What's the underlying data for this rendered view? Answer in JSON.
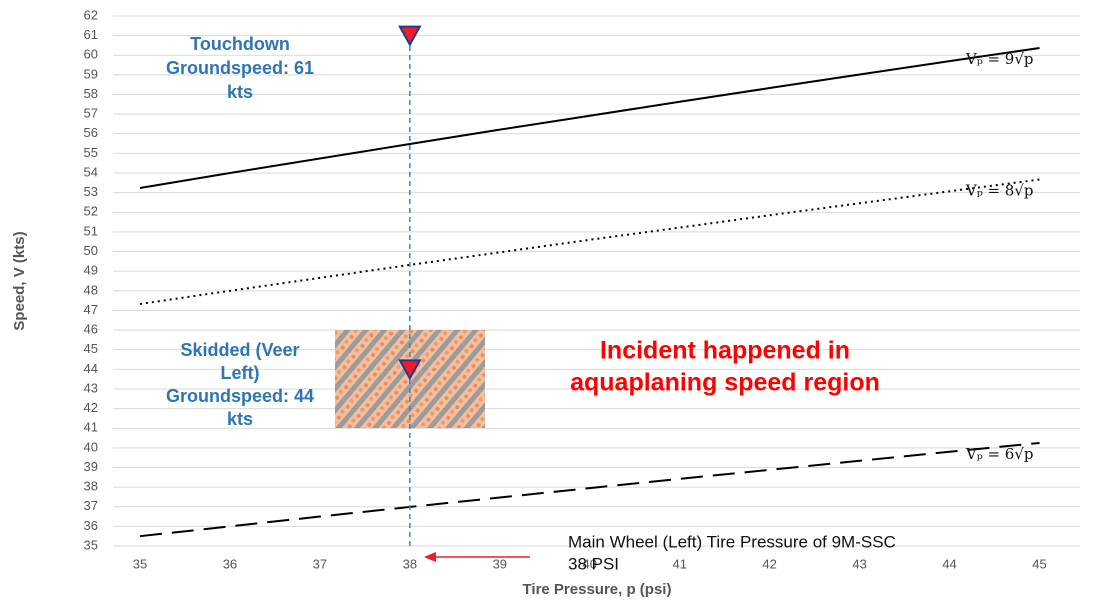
{
  "chart_data": {
    "type": "line",
    "x_label": "Tire Pressure, p (psi)",
    "y_label": "Speed, V (kts)",
    "x": [
      35,
      36,
      37,
      38,
      39,
      40,
      41,
      42,
      43,
      44,
      45
    ],
    "series": [
      {
        "name": "Vₚ = 9√p",
        "color": "#000000",
        "dash": "solid",
        "values": [
          53.24,
          54,
          54.74,
          55.48,
          56.21,
          56.92,
          57.63,
          58.33,
          59.02,
          59.7,
          60.37
        ]
      },
      {
        "name": "Vₚ = 8√p",
        "color": "#000000",
        "dash": "dotted",
        "values": [
          47.33,
          48,
          48.66,
          49.32,
          49.96,
          50.6,
          51.22,
          51.85,
          52.46,
          53.07,
          53.67
        ]
      },
      {
        "name": "Vₚ = 6√p",
        "color": "#000000",
        "dash": "dashed",
        "values": [
          35.5,
          36,
          36.5,
          36.99,
          37.47,
          37.95,
          38.42,
          38.88,
          39.34,
          39.8,
          40.25
        ]
      }
    ],
    "markers": {
      "color": "#ee1c25",
      "x": [
        38,
        38
      ],
      "values": [
        61,
        44
      ]
    },
    "reference_x": 38,
    "reference_color": "#2e86d1",
    "annotations": {
      "touchdown": [
        "Touchdown",
        "Groundspeed:  61",
        "kts"
      ],
      "skidded": [
        "Skidded (Veer",
        "Left)",
        "Groundspeed:  44",
        "kts"
      ],
      "incident": [
        "Incident happened in",
        "aquaplaning speed region"
      ],
      "tire": [
        "Main Wheel (Left) Tire Pressure of 9M-SSC",
        "38 PSI"
      ]
    },
    "xlim": [
      34.7,
      45.45
    ],
    "ylim": [
      35,
      62
    ],
    "xticks": [
      35,
      36,
      37,
      38,
      39,
      40,
      41,
      42,
      43,
      44,
      45
    ],
    "yticks": [
      35,
      36,
      37,
      38,
      39,
      40,
      41,
      42,
      43,
      44,
      45,
      46,
      47,
      48,
      49,
      50,
      51,
      52,
      53,
      54,
      55,
      56,
      57,
      58,
      59,
      60,
      61,
      62
    ],
    "grid": true
  }
}
